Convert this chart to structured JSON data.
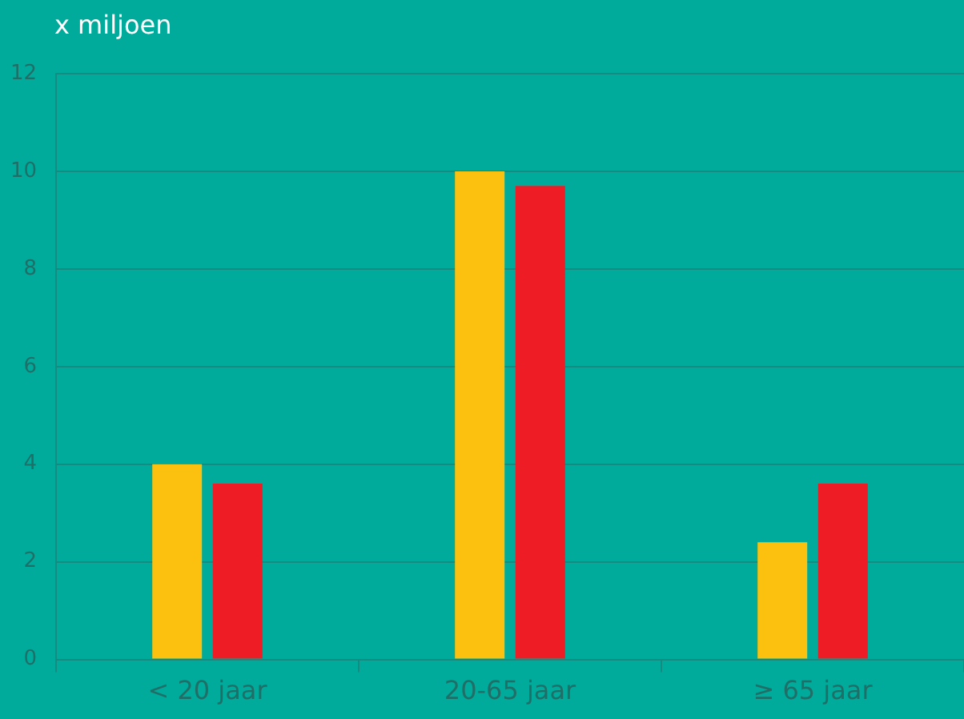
{
  "chart_data": {
    "type": "bar",
    "ylabel": "x miljoen",
    "categories": [
      "< 20 jaar",
      "20-65 jaar",
      "≥ 65 jaar"
    ],
    "series": [
      {
        "color": "#fcc10f",
        "values": [
          4.0,
          10.0,
          2.4
        ]
      },
      {
        "color": "#ee1c25",
        "values": [
          3.6,
          9.7,
          3.6
        ]
      }
    ],
    "ylim": [
      0,
      12
    ],
    "yticks": [
      0,
      2,
      4,
      6,
      8,
      10,
      12
    ],
    "grid": "y",
    "legend": false
  }
}
